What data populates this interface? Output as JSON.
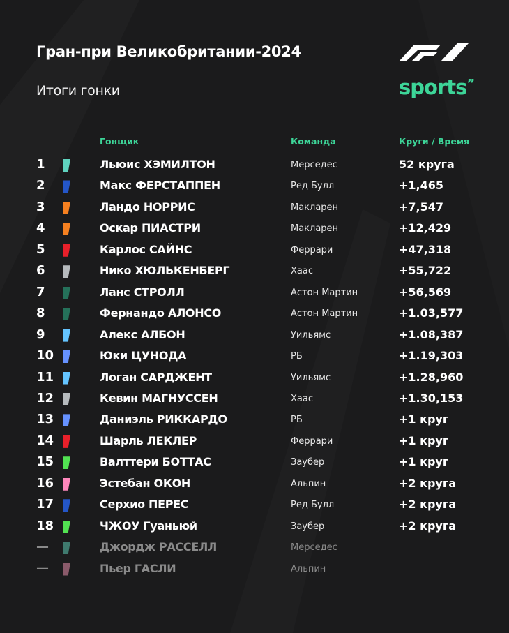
{
  "header": {
    "title": "Гран-при Великобритании-2024",
    "subtitle": "Итоги гонки",
    "logo_f1": "F1",
    "logo_sports": "sports",
    "accent_color": "#3dd598"
  },
  "table": {
    "columns": {
      "driver": "Гонщик",
      "team": "Команда",
      "time": "Круги / Время"
    },
    "rows": [
      {
        "pos": "1",
        "driver": "Льюис ХЭМИЛТОН",
        "team": "Мерседес",
        "time": "52 круга",
        "color": "#5fd3bf"
      },
      {
        "pos": "2",
        "driver": "Макс ФЕРСТАППЕН",
        "team": "Ред Булл",
        "time": "+1,465",
        "color": "#2456c8"
      },
      {
        "pos": "3",
        "driver": "Ландо НОРРИС",
        "team": "Макларен",
        "time": "+7,547",
        "color": "#f58020"
      },
      {
        "pos": "4",
        "driver": "Оскар ПИАСТРИ",
        "team": "Макларен",
        "time": "+12,429",
        "color": "#f58020"
      },
      {
        "pos": "5",
        "driver": "Карлос САЙНС",
        "team": "Феррари",
        "time": "+47,318",
        "color": "#e8202a"
      },
      {
        "pos": "6",
        "driver": "Нико ХЮЛЬКЕНБЕРГ",
        "team": "Хаас",
        "time": "+55,722",
        "color": "#b6babd"
      },
      {
        "pos": "7",
        "driver": "Ланс СТРОЛЛ",
        "team": "Астон Мартин",
        "time": "+56,569",
        "color": "#25715a"
      },
      {
        "pos": "8",
        "driver": "Фернандо АЛОНСО",
        "team": "Астон Мартин",
        "time": "+1.03,577",
        "color": "#25715a"
      },
      {
        "pos": "9",
        "driver": "Алекс АЛБОН",
        "team": "Уильямс",
        "time": "+1.08,387",
        "color": "#64c4ff"
      },
      {
        "pos": "10",
        "driver": "Юки ЦУНОДА",
        "team": "РБ",
        "time": "+1.19,303",
        "color": "#6692ff"
      },
      {
        "pos": "11",
        "driver": "Логан САРДЖЕНТ",
        "team": "Уильямс",
        "time": "+1.28,960",
        "color": "#64c4ff"
      },
      {
        "pos": "12",
        "driver": "Кевин МАГНУССЕН",
        "team": "Хаас",
        "time": "+1.30,153",
        "color": "#b6babd"
      },
      {
        "pos": "13",
        "driver": "Даниэль РИККАРДО",
        "team": "РБ",
        "time": "+1 круг",
        "color": "#6692ff"
      },
      {
        "pos": "14",
        "driver": "Шарль ЛЕКЛЕР",
        "team": "Феррари",
        "time": "+1 круг",
        "color": "#e8202a"
      },
      {
        "pos": "15",
        "driver": "Валттери БОТТАС",
        "team": "Заубер",
        "time": "+1 круг",
        "color": "#52e252"
      },
      {
        "pos": "16",
        "driver": "Эстебан ОКОН",
        "team": "Альпин",
        "time": "+2 круга",
        "color": "#ff87bc"
      },
      {
        "pos": "17",
        "driver": "Серхио ПЕРЕС",
        "team": "Ред Булл",
        "time": "+2 круга",
        "color": "#2456c8"
      },
      {
        "pos": "18",
        "driver": "ЧЖОУ Гуаньюй",
        "team": "Заубер",
        "time": "+2 круга",
        "color": "#52e252"
      },
      {
        "pos": "—",
        "driver": "Джордж РАССЕЛЛ",
        "team": "Мерседес",
        "time": "",
        "color": "#3f7a6e",
        "dnf": true
      },
      {
        "pos": "—",
        "driver": "Пьер ГАСЛИ",
        "team": "Альпин",
        "time": "",
        "color": "#8a5a6a",
        "dnf": true
      }
    ]
  }
}
